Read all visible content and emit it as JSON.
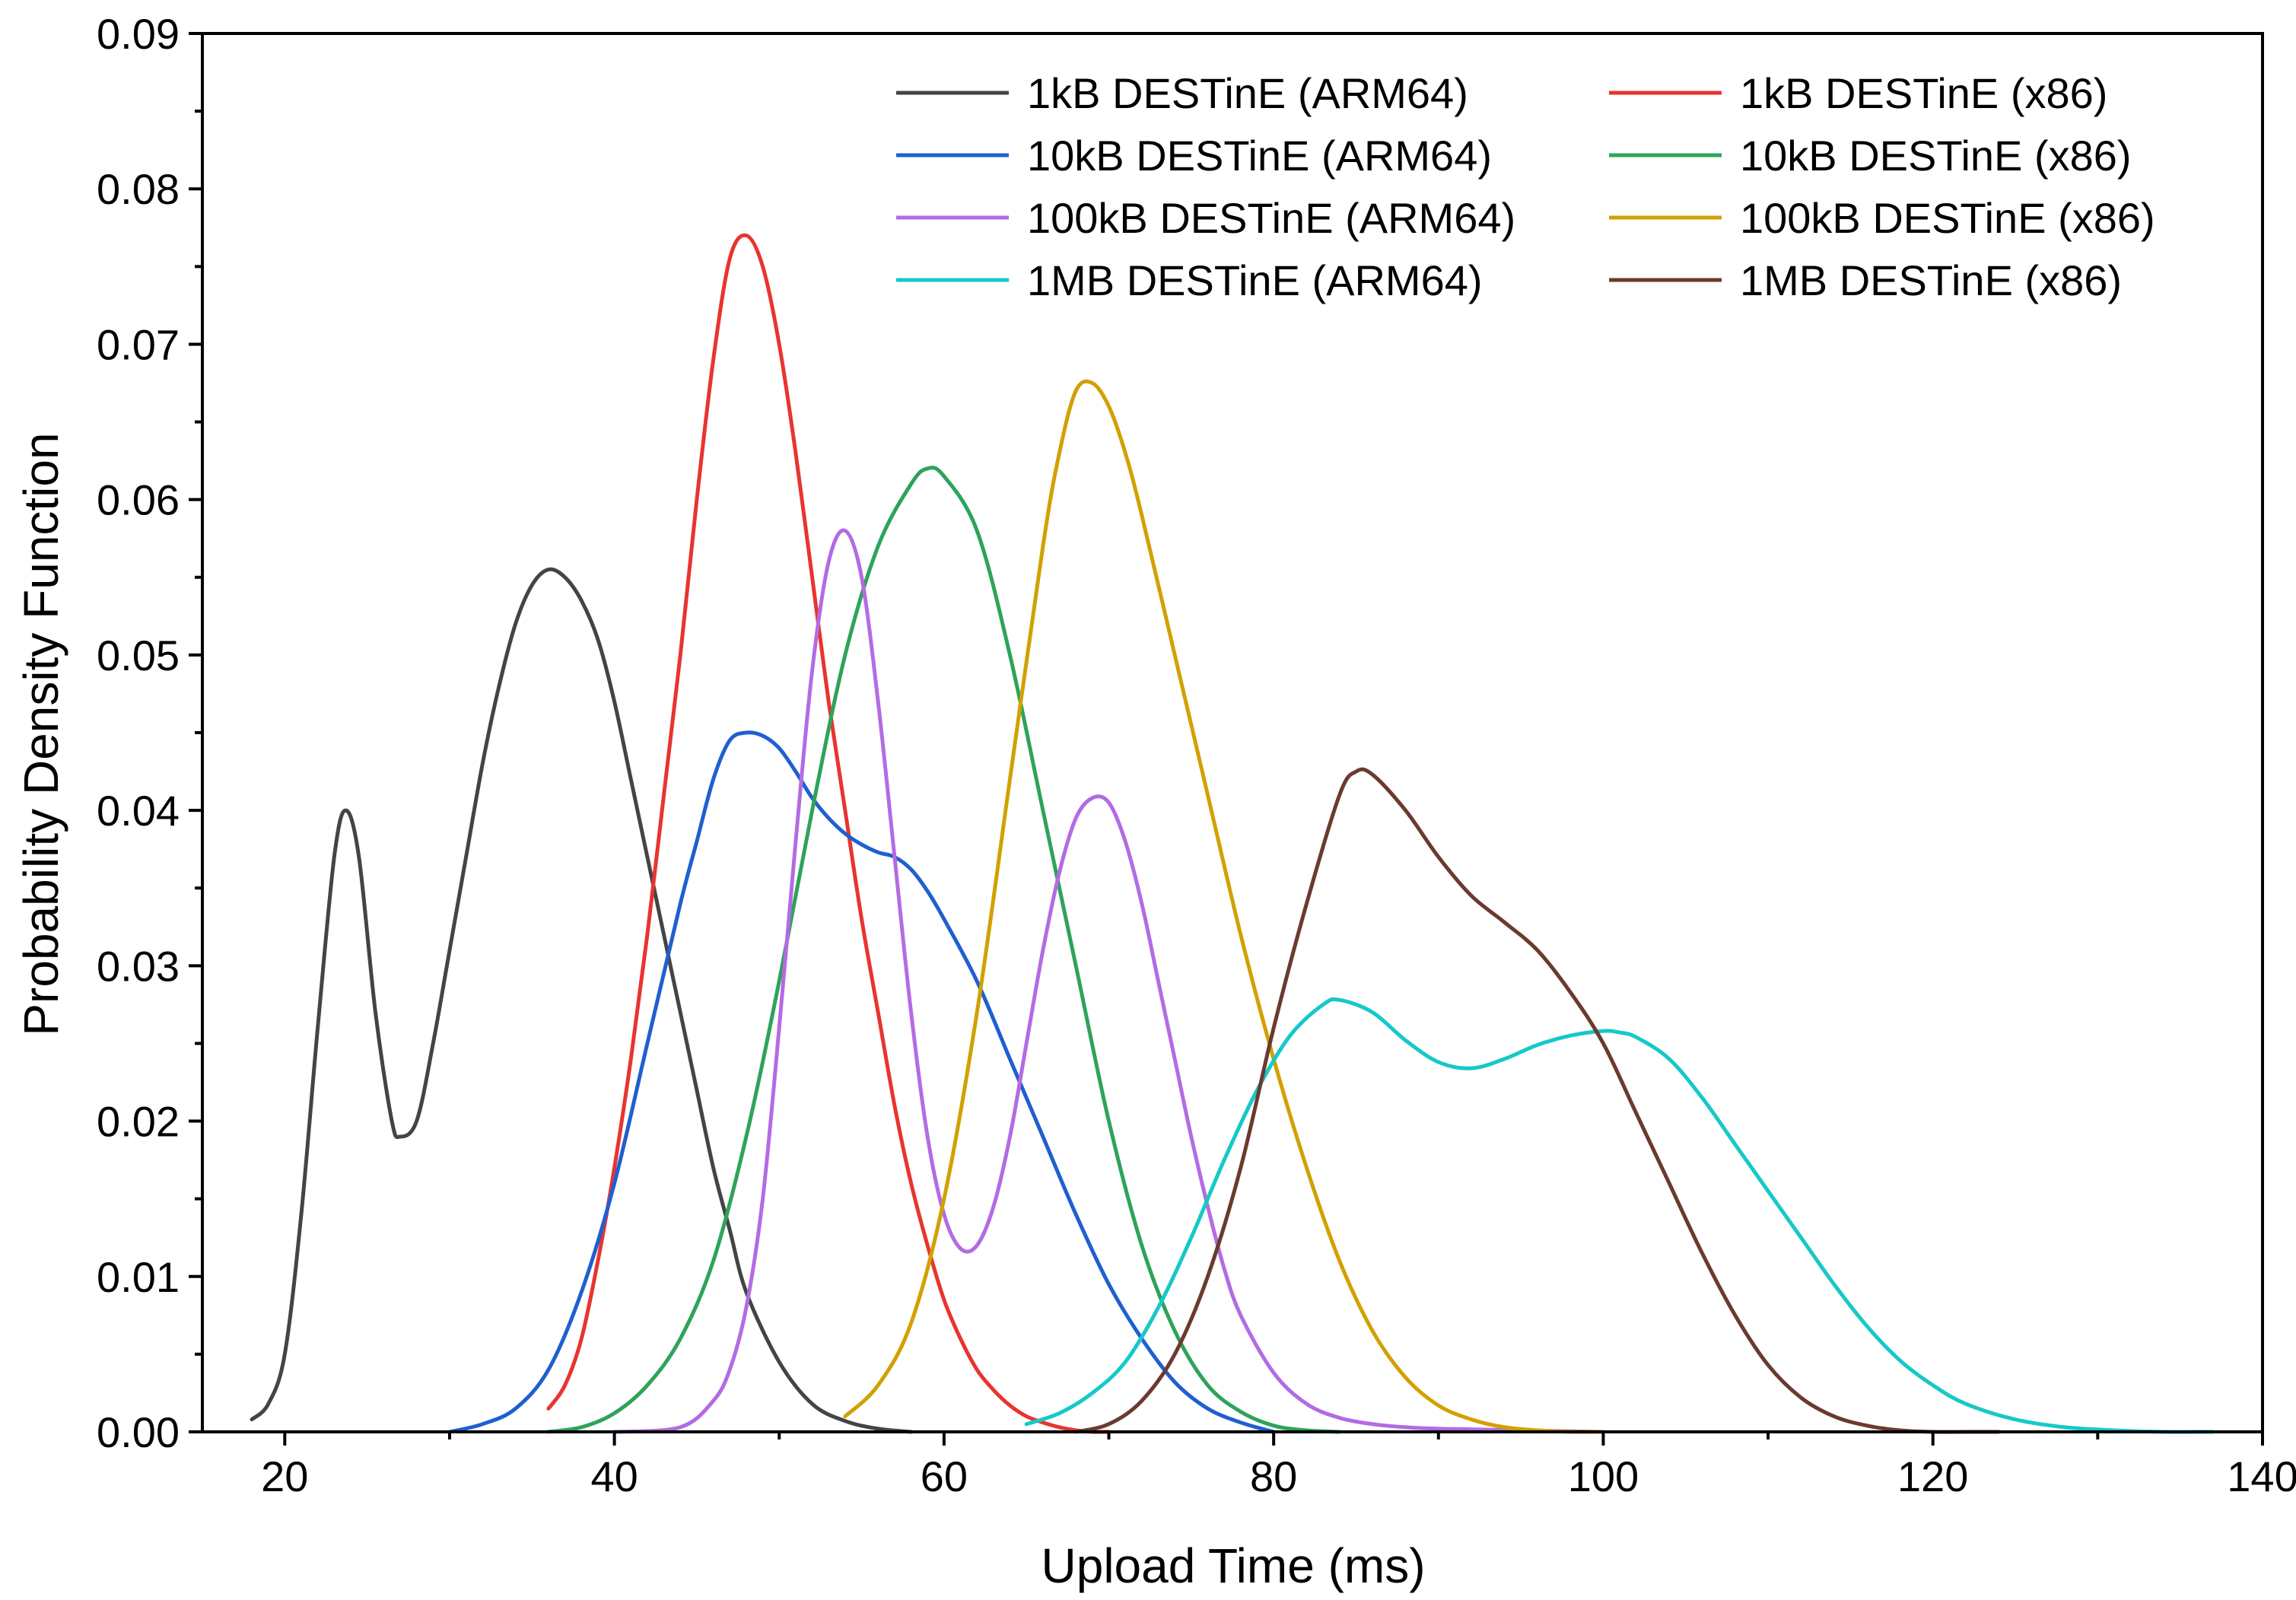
{
  "chart_data": {
    "type": "line",
    "title": "",
    "xlabel": "Upload Time (ms)",
    "ylabel": "Probability Density Function",
    "xlim": [
      15,
      140
    ],
    "ylim": [
      0,
      0.09
    ],
    "xticks": [
      20,
      40,
      60,
      80,
      100,
      120,
      140
    ],
    "xtick_labels": [
      "20",
      "40",
      "60",
      "80",
      "100",
      "120",
      "140"
    ],
    "yticks": [
      0.0,
      0.01,
      0.02,
      0.03,
      0.04,
      0.05,
      0.06,
      0.07,
      0.08,
      0.09
    ],
    "ytick_labels": [
      "0.00",
      "0.01",
      "0.02",
      "0.03",
      "0.04",
      "0.05",
      "0.06",
      "0.07",
      "0.08",
      "0.09"
    ],
    "grid": false,
    "legend": "top-right, two columns",
    "series": [
      {
        "name": "1kB DESTinE (ARM64)",
        "color": "#444444",
        "x": [
          18,
          19,
          20,
          21,
          22,
          23,
          23.7,
          24.5,
          25.5,
          26.5,
          27,
          28,
          29,
          30,
          31,
          32,
          33,
          34,
          35,
          36,
          37,
          38,
          39,
          40,
          41,
          42,
          43,
          44,
          45,
          46,
          47,
          48,
          50,
          52,
          54,
          56,
          58
        ],
        "y": [
          0.0008,
          0.0018,
          0.005,
          0.014,
          0.026,
          0.037,
          0.04,
          0.037,
          0.027,
          0.02,
          0.019,
          0.02,
          0.025,
          0.031,
          0.037,
          0.043,
          0.048,
          0.052,
          0.0545,
          0.0555,
          0.055,
          0.0535,
          0.051,
          0.047,
          0.042,
          0.037,
          0.032,
          0.027,
          0.022,
          0.017,
          0.013,
          0.009,
          0.0045,
          0.0018,
          0.0007,
          0.0002,
          0.0
        ]
      },
      {
        "name": "1kB DESTinE (x86)",
        "color": "#e8342f",
        "x": [
          36,
          37,
          38,
          39,
          40,
          41,
          42,
          43,
          44,
          45,
          46,
          47,
          48,
          49,
          50,
          51,
          52,
          53,
          54,
          55,
          56,
          57,
          58,
          59,
          60,
          61,
          62,
          63,
          64,
          65,
          66,
          67,
          68,
          69,
          70
        ],
        "y": [
          0.0015,
          0.003,
          0.006,
          0.011,
          0.017,
          0.024,
          0.032,
          0.041,
          0.05,
          0.06,
          0.069,
          0.0755,
          0.077,
          0.075,
          0.07,
          0.063,
          0.055,
          0.047,
          0.04,
          0.033,
          0.027,
          0.021,
          0.016,
          0.012,
          0.0085,
          0.006,
          0.004,
          0.0027,
          0.0017,
          0.001,
          0.0006,
          0.0003,
          0.0001,
          0.0,
          0.0
        ]
      },
      {
        "name": "10kB DESTinE (ARM64)",
        "color": "#1f5fd0",
        "x": [
          30,
          32,
          34,
          36,
          38,
          40,
          42,
          44,
          45,
          46,
          47,
          48,
          49,
          50,
          51,
          52,
          53,
          54,
          55,
          56,
          57,
          58,
          59,
          60,
          62,
          64,
          66,
          68,
          70,
          72,
          74,
          76,
          78,
          80
        ],
        "y": [
          0.0,
          0.0005,
          0.0015,
          0.004,
          0.009,
          0.016,
          0.025,
          0.034,
          0.038,
          0.042,
          0.0445,
          0.045,
          0.0448,
          0.044,
          0.0425,
          0.0408,
          0.0395,
          0.0385,
          0.0378,
          0.0373,
          0.037,
          0.0362,
          0.0348,
          0.033,
          0.029,
          0.024,
          0.019,
          0.014,
          0.0095,
          0.006,
          0.0032,
          0.0015,
          0.0006,
          0.0
        ]
      },
      {
        "name": "10kB DESTinE (x86)",
        "color": "#2ea35a",
        "x": [
          36,
          38,
          40,
          42,
          44,
          46,
          48,
          50,
          52,
          54,
          56,
          58,
          59,
          60,
          62,
          64,
          66,
          68,
          70,
          72,
          74,
          76,
          78,
          80,
          82,
          84
        ],
        "y": [
          0.0,
          0.0003,
          0.0012,
          0.003,
          0.006,
          0.011,
          0.019,
          0.029,
          0.04,
          0.05,
          0.057,
          0.061,
          0.062,
          0.0615,
          0.058,
          0.05,
          0.04,
          0.03,
          0.02,
          0.012,
          0.0065,
          0.003,
          0.0013,
          0.0004,
          0.0001,
          0.0
        ]
      },
      {
        "name": "100kB DESTinE (ARM64)",
        "color": "#b36be3",
        "x": [
          40,
          44,
          46,
          47,
          48,
          49,
          50,
          51,
          52,
          53,
          54,
          55,
          56,
          57,
          58,
          59,
          60,
          61,
          62,
          63,
          64,
          65,
          66,
          67,
          68,
          69,
          70,
          71,
          72,
          73,
          74,
          75,
          76,
          77,
          78,
          80,
          82,
          84,
          86,
          88,
          90,
          95,
          100
        ],
        "y": [
          0.0,
          0.0003,
          0.002,
          0.004,
          0.008,
          0.015,
          0.026,
          0.038,
          0.049,
          0.056,
          0.058,
          0.055,
          0.047,
          0.037,
          0.027,
          0.019,
          0.014,
          0.0118,
          0.012,
          0.0145,
          0.019,
          0.025,
          0.031,
          0.036,
          0.0395,
          0.0408,
          0.0405,
          0.038,
          0.034,
          0.029,
          0.024,
          0.019,
          0.0145,
          0.0105,
          0.0075,
          0.0038,
          0.0018,
          0.0009,
          0.0005,
          0.0003,
          0.0002,
          0.0001,
          0.0
        ]
      },
      {
        "name": "100kB DESTinE (x86)",
        "color": "#d1a100",
        "x": [
          54,
          56,
          58,
          60,
          62,
          64,
          66,
          67,
          68,
          69,
          70,
          71,
          72,
          74,
          76,
          78,
          80,
          82,
          84,
          86,
          88,
          90,
          92,
          94,
          96,
          98,
          100
        ],
        "y": [
          0.001,
          0.003,
          0.007,
          0.015,
          0.027,
          0.042,
          0.057,
          0.063,
          0.067,
          0.0675,
          0.066,
          0.063,
          0.059,
          0.05,
          0.041,
          0.032,
          0.024,
          0.017,
          0.011,
          0.0065,
          0.0035,
          0.0017,
          0.0008,
          0.0003,
          0.0001,
          0.0,
          0.0
        ]
      },
      {
        "name": "1MB DESTinE (ARM64)",
        "color": "#17c8c8",
        "x": [
          65,
          67,
          69,
          71,
          73,
          75,
          77,
          79,
          81,
          83,
          84,
          86,
          88,
          90,
          92,
          94,
          96,
          98,
          100,
          101,
          102,
          104,
          106,
          108,
          110,
          112,
          114,
          116,
          118,
          120,
          122,
          125,
          128,
          131,
          134,
          137
        ],
        "y": [
          0.0005,
          0.0012,
          0.0025,
          0.0045,
          0.008,
          0.0125,
          0.0175,
          0.022,
          0.0255,
          0.0275,
          0.0278,
          0.027,
          0.0252,
          0.0238,
          0.0234,
          0.024,
          0.0249,
          0.0255,
          0.0258,
          0.0257,
          0.0254,
          0.024,
          0.0215,
          0.0185,
          0.0155,
          0.0125,
          0.0095,
          0.0068,
          0.0046,
          0.003,
          0.0018,
          0.0008,
          0.0003,
          0.0001,
          0.0,
          0.0
        ]
      },
      {
        "name": "1MB DESTinE (x86)",
        "color": "#6b3a2e",
        "x": [
          68,
          70,
          72,
          74,
          76,
          78,
          80,
          82,
          84,
          85,
          86,
          88,
          90,
          92,
          94,
          96,
          98,
          100,
          102,
          104,
          106,
          108,
          110,
          112,
          114,
          116,
          118,
          120,
          122,
          124
        ],
        "y": [
          0.0,
          0.0005,
          0.002,
          0.005,
          0.01,
          0.017,
          0.026,
          0.034,
          0.041,
          0.0425,
          0.0423,
          0.04,
          0.037,
          0.0345,
          0.0328,
          0.031,
          0.0283,
          0.025,
          0.0205,
          0.016,
          0.0115,
          0.0075,
          0.0043,
          0.0022,
          0.001,
          0.0004,
          0.0001,
          0.0,
          0.0,
          0.0
        ]
      }
    ]
  }
}
